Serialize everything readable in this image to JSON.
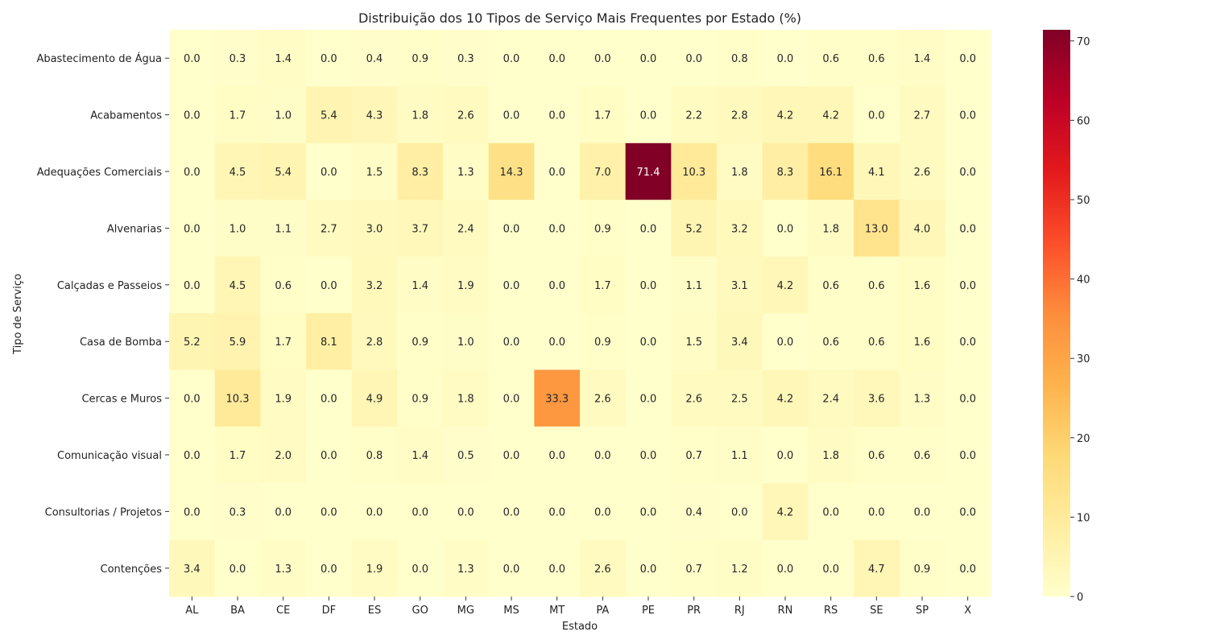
{
  "chart_data": {
    "type": "heatmap",
    "title": "Distribuição dos 10 Tipos de Serviço Mais Frequentes por Estado (%)",
    "xlabel": "Estado",
    "ylabel": "Tipo de Serviço",
    "x": [
      "AL",
      "BA",
      "CE",
      "DF",
      "ES",
      "GO",
      "MG",
      "MS",
      "MT",
      "PA",
      "PE",
      "PR",
      "RJ",
      "RN",
      "RS",
      "SE",
      "SP",
      "X"
    ],
    "y": [
      "Abastecimento de Água",
      "Acabamentos",
      "Adequações Comerciais",
      "Alvenarias",
      "Calçadas e Passeios",
      "Casa de Bomba",
      "Cercas e Muros",
      "Comunicação visual",
      "Consultorias / Projetos",
      "Contenções"
    ],
    "values": [
      [
        0.0,
        0.3,
        1.4,
        0.0,
        0.4,
        0.9,
        0.3,
        0.0,
        0.0,
        0.0,
        0.0,
        0.0,
        0.8,
        0.0,
        0.6,
        0.6,
        1.4,
        0.0
      ],
      [
        0.0,
        1.7,
        1.0,
        5.4,
        4.3,
        1.8,
        2.6,
        0.0,
        0.0,
        1.7,
        0.0,
        2.2,
        2.8,
        4.2,
        4.2,
        0.0,
        2.7,
        0.0
      ],
      [
        0.0,
        4.5,
        5.4,
        0.0,
        1.5,
        8.3,
        1.3,
        14.3,
        0.0,
        7.0,
        71.4,
        10.3,
        1.8,
        8.3,
        16.1,
        4.1,
        2.6,
        0.0
      ],
      [
        0.0,
        1.0,
        1.1,
        2.7,
        3.0,
        3.7,
        2.4,
        0.0,
        0.0,
        0.9,
        0.0,
        5.2,
        3.2,
        0.0,
        1.8,
        13.0,
        4.0,
        0.0
      ],
      [
        0.0,
        4.5,
        0.6,
        0.0,
        3.2,
        1.4,
        1.9,
        0.0,
        0.0,
        1.7,
        0.0,
        1.1,
        3.1,
        4.2,
        0.6,
        0.6,
        1.6,
        0.0
      ],
      [
        5.2,
        5.9,
        1.7,
        8.1,
        2.8,
        0.9,
        1.0,
        0.0,
        0.0,
        0.9,
        0.0,
        1.5,
        3.4,
        0.0,
        0.6,
        0.6,
        1.6,
        0.0
      ],
      [
        0.0,
        10.3,
        1.9,
        0.0,
        4.9,
        0.9,
        1.8,
        0.0,
        33.3,
        2.6,
        0.0,
        2.6,
        2.5,
        4.2,
        2.4,
        3.6,
        1.3,
        0.0
      ],
      [
        0.0,
        1.7,
        2.0,
        0.0,
        0.8,
        1.4,
        0.5,
        0.0,
        0.0,
        0.0,
        0.0,
        0.7,
        1.1,
        0.0,
        1.8,
        0.6,
        0.6,
        0.0
      ],
      [
        0.0,
        0.3,
        0.0,
        0.0,
        0.0,
        0.0,
        0.0,
        0.0,
        0.0,
        0.0,
        0.0,
        0.4,
        0.0,
        4.2,
        0.0,
        0.0,
        0.0,
        0.0
      ],
      [
        3.4,
        0.0,
        1.3,
        0.0,
        1.9,
        0.0,
        1.3,
        0.0,
        0.0,
        2.6,
        0.0,
        0.7,
        1.2,
        0.0,
        0.0,
        4.7,
        0.9,
        0.0
      ]
    ],
    "value_format": "0.0",
    "colormap": "YlOrRd",
    "vmin": 0,
    "vmax": 71.4,
    "colorbar_ticks": [
      0,
      10,
      20,
      30,
      40,
      50,
      60,
      70
    ],
    "grid": false
  }
}
